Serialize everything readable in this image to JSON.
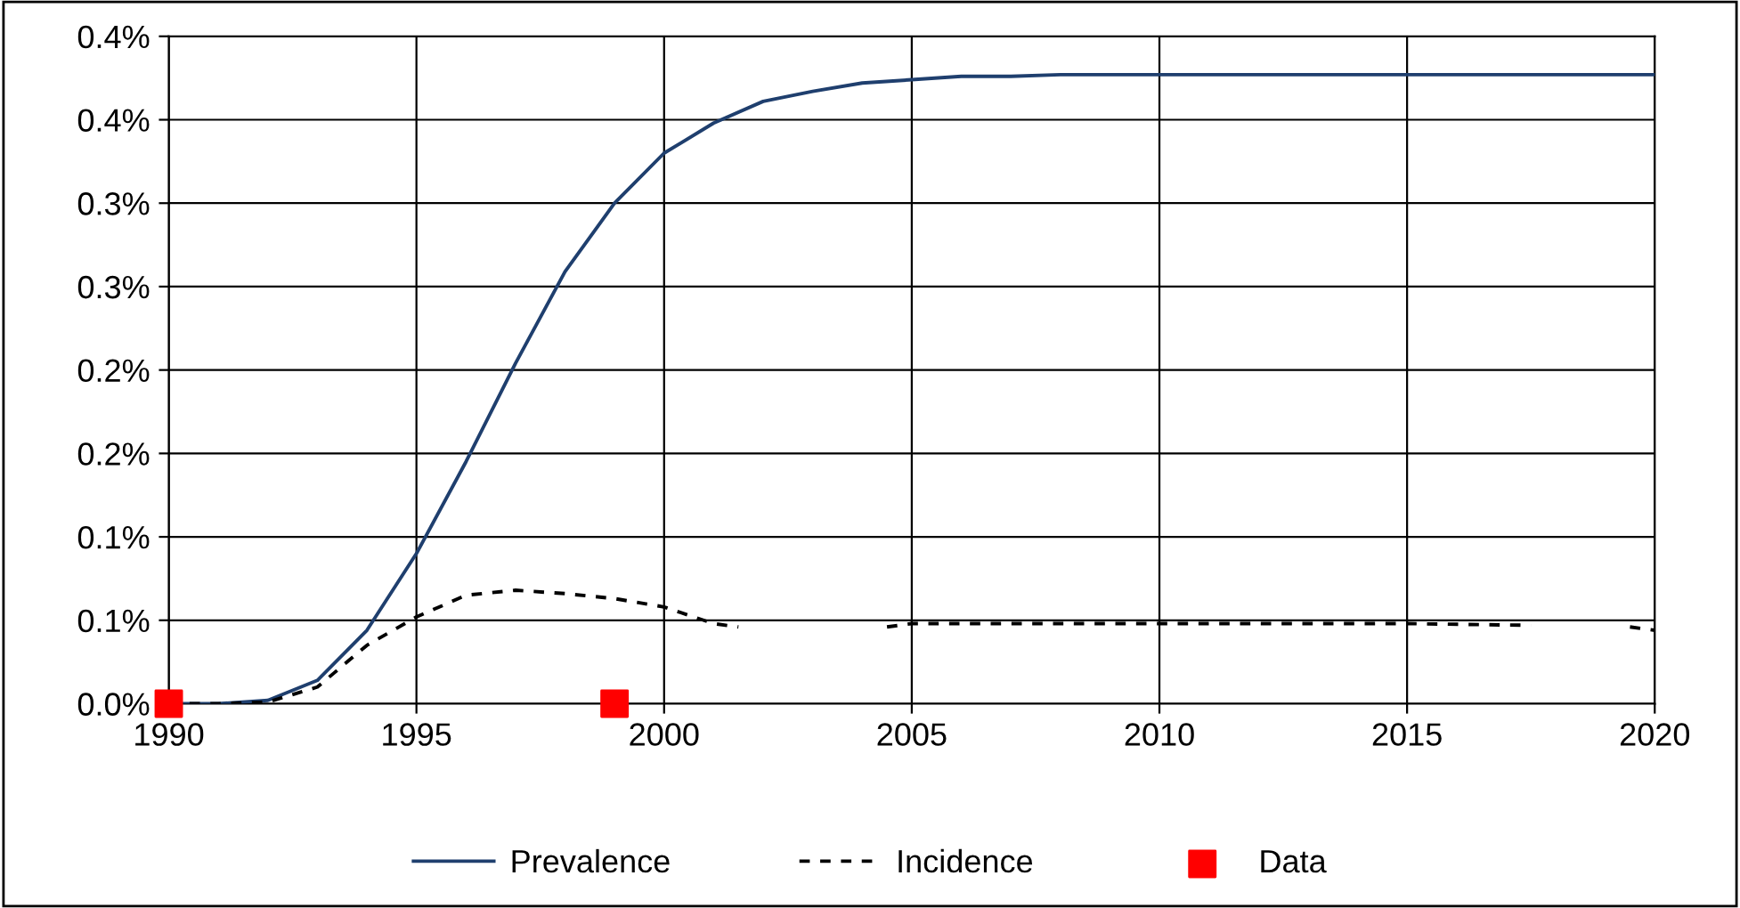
{
  "chart_data": {
    "type": "line",
    "xlim": [
      1990,
      2020
    ],
    "xticks": [
      1990,
      1995,
      2000,
      2005,
      2010,
      2015,
      2020
    ],
    "ylim": [
      0,
      0.4
    ],
    "yticks": [
      {
        "value": 0,
        "label": "0.0%"
      },
      {
        "value": 0.05,
        "label": "0.1%"
      },
      {
        "value": 0.1,
        "label": "0.1%"
      },
      {
        "value": 0.15,
        "label": "0.2%"
      },
      {
        "value": 0.2,
        "label": "0.2%"
      },
      {
        "value": 0.25,
        "label": "0.3%"
      },
      {
        "value": 0.3,
        "label": "0.3%"
      },
      {
        "value": 0.35,
        "label": "0.4%"
      },
      {
        "value": 0.4,
        "label": "0.4%"
      }
    ],
    "grid": true,
    "legend": "bottom",
    "series": [
      {
        "name": "Prevalence",
        "color": "#1f3f6e",
        "line_style": "solid",
        "marker": "none",
        "x": [
          1990,
          1991,
          1992,
          1993,
          1994,
          1995,
          1996,
          1997,
          1998,
          1999,
          2000,
          2001,
          2002,
          2003,
          2004,
          2005,
          2006,
          2007,
          2008,
          2010,
          2015,
          2020
        ],
        "values": [
          0,
          0,
          0.002,
          0.014,
          0.044,
          0.09,
          0.145,
          0.204,
          0.259,
          0.3,
          0.33,
          0.348,
          0.361,
          0.367,
          0.372,
          0.374,
          0.376,
          0.376,
          0.377,
          0.377,
          0.377,
          0.377
        ]
      },
      {
        "name": "Incidence",
        "color": "#000000",
        "line_style": "dashed",
        "marker": "none",
        "x": [
          1990,
          1991,
          1992,
          1993,
          1994,
          1995,
          1996,
          1997,
          1998,
          1999,
          2000,
          2001,
          2001.5,
          2003,
          2004.5,
          2005,
          2010,
          2015,
          2017.5,
          2018.5,
          2019.5,
          2020
        ],
        "values": [
          0,
          0,
          0.001,
          0.01,
          0.035,
          0.052,
          0.065,
          0.068,
          0.066,
          0.063,
          0.058,
          0.048,
          0.046,
          null,
          0.046,
          0.048,
          0.048,
          0.048,
          0.047,
          null,
          0.046,
          0.044
        ]
      },
      {
        "name": "Data",
        "type": "scatter",
        "color": "#ff0000",
        "marker": "square",
        "x": [
          1990,
          1999
        ],
        "values": [
          0,
          0
        ]
      }
    ]
  }
}
